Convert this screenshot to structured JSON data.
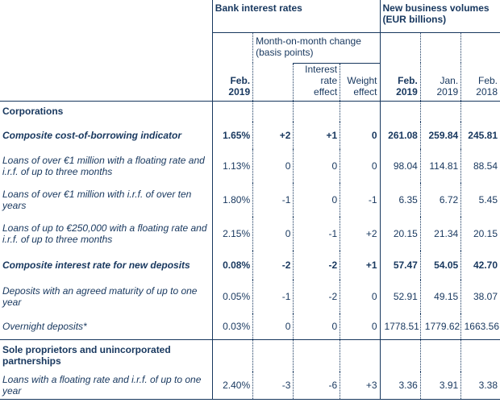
{
  "header": {
    "bank_interest_rates": "Bank interest rates",
    "new_business_volumes": "New business volumes (EUR billions)",
    "mom_change": "Month-on-month change (basis points)",
    "feb2019": "Feb. 2019",
    "interest_rate_effect": "Interest rate effect",
    "weight_effect": "Weight effect",
    "vol_feb2019": "Feb. 2019",
    "vol_jan2019": "Jan. 2019",
    "vol_feb2018": "Feb. 2018"
  },
  "sections": {
    "corporations": "Corporations",
    "sole_proprietors": "Sole proprietors and unincorporated partnerships"
  },
  "rows": [
    {
      "label": "Composite cost-of-borrowing indicator",
      "rate": "1.65%",
      "mom": "+2",
      "ire": "+1",
      "we": "0",
      "v1": "261.08",
      "v2": "259.84",
      "v3": "245.81"
    },
    {
      "label": "Loans of over €1 million with a floating rate and i.r.f. of up to three months",
      "rate": "1.13%",
      "mom": "0",
      "ire": "0",
      "we": "0",
      "v1": "98.04",
      "v2": "114.81",
      "v3": "88.54"
    },
    {
      "label": "Loans of over €1 million with i.r.f. of over ten years",
      "rate": "1.80%",
      "mom": "-1",
      "ire": "0",
      "we": "-1",
      "v1": "6.35",
      "v2": "6.72",
      "v3": "5.45"
    },
    {
      "label": "Loans of up to €250,000 with a floating rate and i.r.f. of up to three months",
      "rate": "2.15%",
      "mom": "0",
      "ire": "-1",
      "we": "+2",
      "v1": "20.15",
      "v2": "21.34",
      "v3": "20.15"
    },
    {
      "label": "Composite interest rate for new deposits",
      "rate": "0.08%",
      "mom": "-2",
      "ire": "-2",
      "we": "+1",
      "v1": "57.47",
      "v2": "54.05",
      "v3": "42.70"
    },
    {
      "label": "Deposits with an agreed maturity of up to one year",
      "rate": "0.05%",
      "mom": "-1",
      "ire": "-2",
      "we": "0",
      "v1": "52.91",
      "v2": "49.15",
      "v3": "38.07"
    },
    {
      "label": "Overnight deposits*",
      "rate": "0.03%",
      "mom": "0",
      "ire": "0",
      "we": "0",
      "v1": "1778.51",
      "v2": "1779.62",
      "v3": "1663.56"
    },
    {
      "label": "Loans with a floating rate and i.r.f. of up to one year",
      "rate": "2.40%",
      "mom": "-3",
      "ire": "-6",
      "we": "+3",
      "v1": "3.36",
      "v2": "3.91",
      "v3": "3.38"
    }
  ]
}
